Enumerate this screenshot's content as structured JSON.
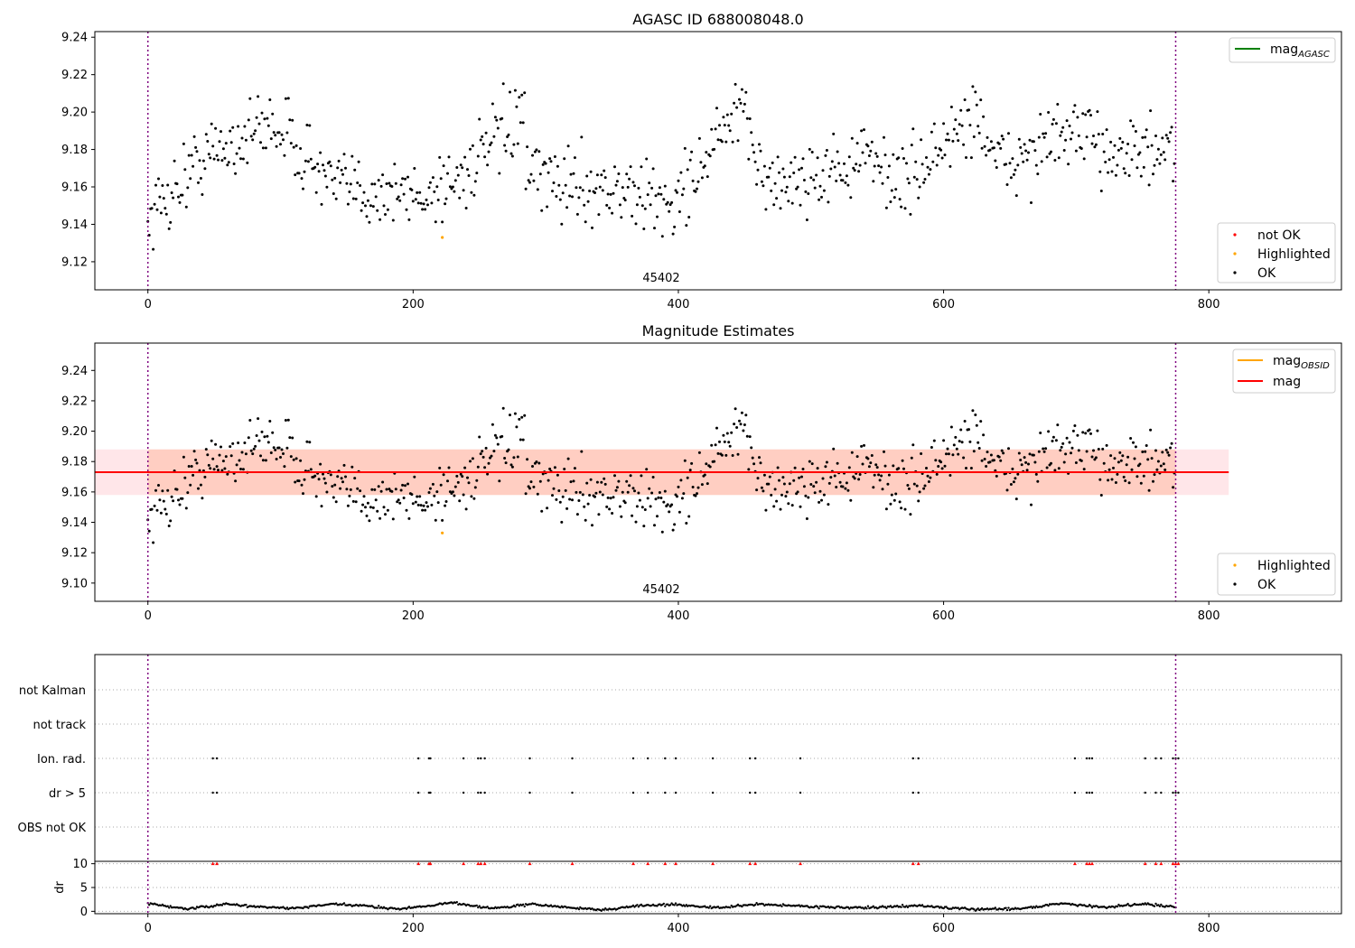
{
  "chart_data": [
    {
      "type": "scatter",
      "title": "AGASC ID 688008048.0",
      "annotation": "45402",
      "xlim": [
        -40,
        900
      ],
      "ylim": [
        9.105,
        9.243
      ],
      "xticks": [
        0,
        200,
        400,
        600,
        800
      ],
      "yticks": [
        9.12,
        9.14,
        9.16,
        9.18,
        9.2,
        9.22,
        9.24
      ],
      "vlines": [
        0,
        775
      ],
      "grid": false,
      "legend_top": {
        "placement": "top-right",
        "entries": [
          {
            "label": "mag",
            "sub": "AGASC",
            "color": "#008000",
            "kind": "line"
          }
        ]
      },
      "legend_bottom": {
        "placement": "bottom-right",
        "entries": [
          {
            "label": "not OK",
            "color": "#ff0000",
            "kind": "dot"
          },
          {
            "label": "Highlighted",
            "color": "#ffa500",
            "kind": "dot"
          },
          {
            "label": "OK",
            "color": "#000000",
            "kind": "dot"
          }
        ]
      },
      "series": [
        {
          "name": "Highlighted",
          "color": "#ffa500",
          "x": [
            222
          ],
          "y": [
            9.133
          ]
        },
        {
          "name": "OK",
          "color": "#000000",
          "segments": [
            {
              "x": [
                0,
                40
              ],
              "y": [
                9.143,
                9.175
              ]
            },
            {
              "x": [
                40,
                95
              ],
              "y": [
                9.175,
                9.195
              ]
            },
            {
              "x": [
                95,
                140
              ],
              "y": [
                9.195,
                9.16
              ]
            },
            {
              "x": [
                140,
                205
              ],
              "y": [
                9.16,
                9.155
              ]
            },
            {
              "x": [
                205,
                235
              ],
              "y": [
                9.155,
                9.165
              ]
            },
            {
              "x": [
                235,
                285
              ],
              "y": [
                9.165,
                9.2
              ]
            },
            {
              "x": [
                285,
                340
              ],
              "y": [
                9.165,
                9.16
              ]
            },
            {
              "x": [
                340,
                400
              ],
              "y": [
                9.16,
                9.15
              ]
            },
            {
              "x": [
                400,
                445
              ],
              "y": [
                9.155,
                9.2
              ]
            },
            {
              "x": [
                445,
                470
              ],
              "y": [
                9.2,
                9.16
              ]
            },
            {
              "x": [
                470,
                545
              ],
              "y": [
                9.16,
                9.175
              ]
            },
            {
              "x": [
                545,
                575
              ],
              "y": [
                9.175,
                9.16
              ]
            },
            {
              "x": [
                575,
                625
              ],
              "y": [
                9.165,
                9.2
              ]
            },
            {
              "x": [
                625,
                640
              ],
              "y": [
                9.2,
                9.175
              ]
            },
            {
              "x": [
                640,
                700
              ],
              "y": [
                9.17,
                9.19
              ]
            },
            {
              "x": [
                700,
                775
              ],
              "y": [
                9.185,
                9.175
              ]
            }
          ]
        }
      ]
    },
    {
      "type": "scatter",
      "title": "Magnitude Estimates",
      "annotation": "45402",
      "xlim": [
        -40,
        900
      ],
      "ylim": [
        9.088,
        9.258
      ],
      "xticks": [
        0,
        200,
        400,
        600,
        800
      ],
      "yticks": [
        9.1,
        9.12,
        9.14,
        9.16,
        9.18,
        9.2,
        9.22,
        9.24
      ],
      "vlines": [
        0,
        775
      ],
      "grid": false,
      "band_pink": {
        "x": [
          -40,
          815
        ],
        "y": [
          9.158,
          9.188
        ],
        "color": "#ffb6c1"
      },
      "band_orange": {
        "x": [
          0,
          775
        ],
        "y": [
          9.158,
          9.188
        ],
        "color": "#ffa07a"
      },
      "lines": [
        {
          "label": "mag",
          "sub": "OBSID",
          "color": "#ffa500",
          "y": 9.173,
          "x": [
            0,
            775
          ]
        },
        {
          "label": "mag",
          "color": "#ff0000",
          "y": 9.173,
          "x": [
            -40,
            815
          ]
        }
      ],
      "legend_top": {
        "placement": "top-right",
        "entries": [
          {
            "label": "mag",
            "sub": "OBSID",
            "color": "#ffa500",
            "kind": "line"
          },
          {
            "label": "mag",
            "color": "#ff0000",
            "kind": "line"
          }
        ]
      },
      "legend_bottom": {
        "placement": "bottom-right",
        "entries": [
          {
            "label": "Highlighted",
            "color": "#ffa500",
            "kind": "dot"
          },
          {
            "label": "OK",
            "color": "#000000",
            "kind": "dot"
          }
        ]
      },
      "series": [
        {
          "name": "Highlighted",
          "color": "#ffa500",
          "x": [
            222
          ],
          "y": [
            9.133
          ]
        },
        {
          "name": "OK",
          "color": "#000000",
          "same_as_chart": 0
        }
      ]
    },
    {
      "type": "scatter",
      "title": "",
      "xlim": [
        -40,
        900
      ],
      "categories": [
        "not Kalman",
        "not track",
        "Ion. rad.",
        "dr > 5",
        "OBS not OK"
      ],
      "flag_x": [
        49,
        52,
        204,
        213,
        212,
        238,
        249,
        251,
        254,
        288,
        320,
        366,
        377,
        390,
        398,
        426,
        454,
        458,
        492,
        577,
        581,
        699,
        708,
        712,
        710,
        752,
        760,
        764,
        773,
        775,
        777
      ],
      "flag_rows": [
        "Ion. rad.",
        "dr > 5"
      ],
      "grid": true
    },
    {
      "type": "scatter",
      "title": "",
      "ylabel": "dr",
      "xlim": [
        -40,
        900
      ],
      "ylim": [
        -0.5,
        10.5
      ],
      "xticks": [
        0,
        200,
        400,
        600,
        800
      ],
      "yticks": [
        0,
        5,
        10
      ],
      "clipped_marker_y": 10,
      "clipped_color": "#ff0000",
      "series": [
        {
          "name": "dr",
          "color": "#000000",
          "x": [
            0,
            30,
            60,
            80,
            110,
            140,
            160,
            190,
            230,
            260,
            290,
            320,
            345,
            370,
            400,
            430,
            460,
            500,
            540,
            580,
            620,
            660,
            690,
            720,
            750,
            775
          ],
          "y": [
            1.6,
            0.5,
            1.5,
            1.0,
            0.6,
            1.5,
            1.2,
            0.5,
            1.8,
            0.6,
            1.5,
            0.7,
            0.3,
            1.2,
            1.4,
            0.7,
            1.5,
            1.0,
            0.7,
            1.2,
            0.4,
            0.6,
            1.7,
            0.8,
            1.6,
            0.9
          ]
        }
      ]
    }
  ]
}
